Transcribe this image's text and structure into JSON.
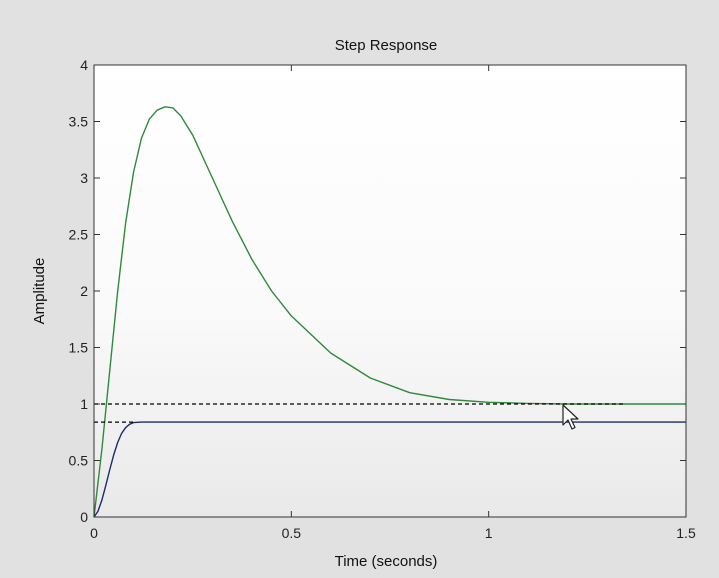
{
  "chart_data": {
    "type": "line",
    "title": "Step Response",
    "xlabel": "Time (seconds)",
    "ylabel": "Amplitude",
    "xlim": [
      0,
      1.5
    ],
    "ylim": [
      0,
      4
    ],
    "x_ticks": [
      "0",
      "0.5",
      "1",
      "1.5"
    ],
    "y_ticks": [
      "0",
      "0.5",
      "1",
      "1.5",
      "2",
      "2.5",
      "3",
      "3.5",
      "4"
    ],
    "grid": false,
    "series": [
      {
        "color": "#2f8a3a",
        "style": "solid",
        "x": [
          0,
          0.02,
          0.04,
          0.06,
          0.08,
          0.1,
          0.12,
          0.14,
          0.16,
          0.18,
          0.2,
          0.22,
          0.25,
          0.3,
          0.35,
          0.4,
          0.45,
          0.5,
          0.6,
          0.7,
          0.8,
          0.9,
          1.0,
          1.1,
          1.2,
          1.3,
          1.4,
          1.5
        ],
        "y": [
          0,
          0.6,
          1.3,
          2.0,
          2.6,
          3.05,
          3.35,
          3.52,
          3.6,
          3.63,
          3.62,
          3.55,
          3.38,
          3.0,
          2.62,
          2.28,
          2.0,
          1.78,
          1.45,
          1.23,
          1.1,
          1.04,
          1.015,
          1.005,
          1.0,
          1.0,
          1.0,
          1.0
        ]
      },
      {
        "color": "#1e2a6e",
        "style": "solid",
        "x": [
          0,
          0.01,
          0.02,
          0.03,
          0.04,
          0.05,
          0.06,
          0.07,
          0.08,
          0.09,
          0.1,
          0.12,
          0.15,
          0.3,
          0.5,
          1.0,
          1.5
        ],
        "y": [
          0,
          0.05,
          0.15,
          0.28,
          0.42,
          0.55,
          0.66,
          0.74,
          0.79,
          0.82,
          0.835,
          0.84,
          0.84,
          0.84,
          0.84,
          0.84,
          0.84
        ]
      },
      {
        "color": "#000000",
        "style": "dashed",
        "x": [
          0,
          1.34
        ],
        "y": [
          1.0,
          1.0
        ]
      },
      {
        "color": "#000000",
        "style": "dashed",
        "x": [
          0,
          0.1
        ],
        "y": [
          0.84,
          0.84
        ]
      }
    ]
  }
}
